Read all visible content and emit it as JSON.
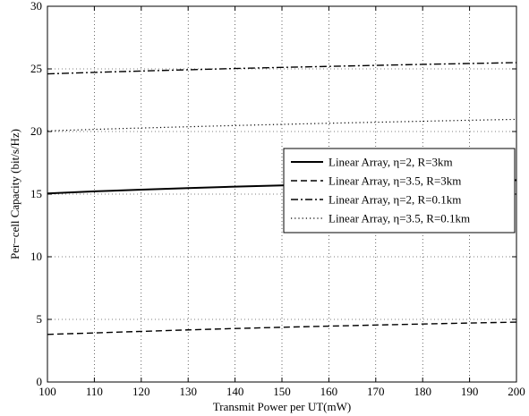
{
  "chart_data": {
    "type": "line",
    "title": "",
    "xlabel": "Transmit Power per UT(mW)",
    "ylabel": "Per−cell Capacity (bit/s/Hz)",
    "xlim": [
      100,
      200
    ],
    "ylim": [
      0,
      30
    ],
    "xticks": [
      "100",
      "110",
      "120",
      "130",
      "140",
      "150",
      "160",
      "170",
      "180",
      "190",
      "200"
    ],
    "yticks": [
      "0",
      "5",
      "10",
      "15",
      "20",
      "25",
      "30"
    ],
    "grid": true,
    "legend_position": "center-right",
    "x": [
      100,
      110,
      120,
      130,
      140,
      150,
      160,
      170,
      180,
      190,
      200
    ],
    "series": [
      {
        "name": "Linear Array, η=2, R=3km",
        "style": "solid",
        "color": "#000000",
        "values": [
          15.05,
          15.22,
          15.36,
          15.48,
          15.6,
          15.7,
          15.8,
          15.88,
          15.97,
          16.05,
          16.12
        ]
      },
      {
        "name": "Linear Array, η=3.5, R=3km",
        "style": "dashed",
        "color": "#000000",
        "values": [
          3.8,
          3.92,
          4.04,
          4.16,
          4.27,
          4.37,
          4.46,
          4.55,
          4.63,
          4.71,
          4.78
        ]
      },
      {
        "name": "Linear Array, η=2, R=0.1km",
        "style": "dashdot",
        "color": "#000000",
        "values": [
          24.6,
          24.72,
          24.83,
          24.93,
          25.03,
          25.12,
          25.2,
          25.28,
          25.36,
          25.43,
          25.5
        ]
      },
      {
        "name": "Linear Array, η=3.5, R=0.1km",
        "style": "dotted",
        "color": "#000000",
        "values": [
          20.05,
          20.17,
          20.28,
          20.38,
          20.48,
          20.57,
          20.66,
          20.74,
          20.82,
          20.9,
          20.97
        ]
      }
    ]
  }
}
